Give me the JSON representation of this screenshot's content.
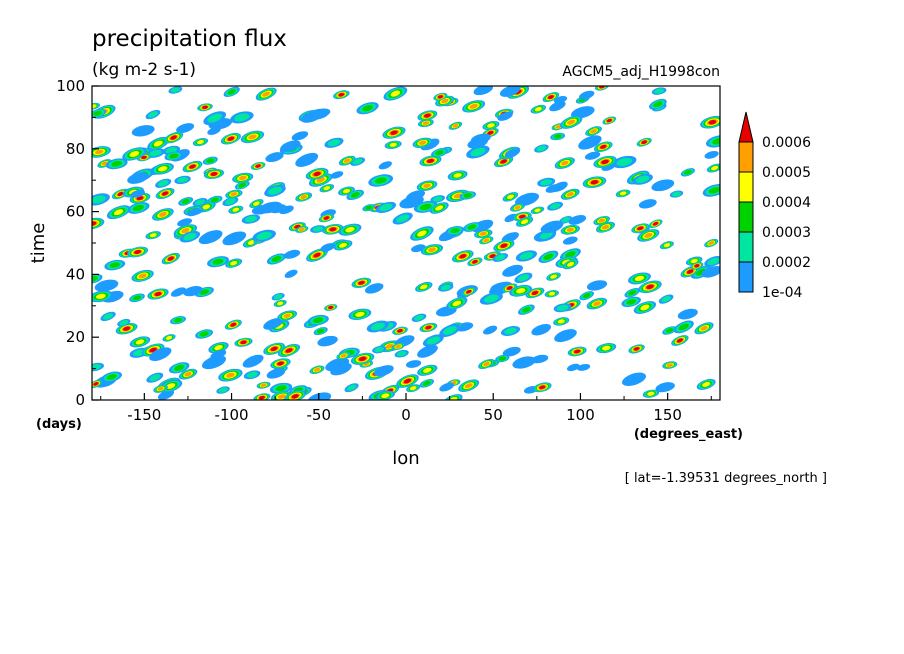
{
  "title": "precipitation flux",
  "units": "(kg m-2 s-1)",
  "dataset": "AGCM5_adj_H1998con",
  "footer": "[ lat=-1.39531 degrees_north ]",
  "colors": {
    "c1": "#1e9bff",
    "c2": "#00e6a0",
    "c3": "#00d200",
    "c4": "#ffff00",
    "c5": "#ffa000",
    "c6": "#e60000"
  },
  "chart_data": {
    "type": "heatmap",
    "title": "precipitation flux",
    "subtitle": "(kg m-2 s-1)",
    "xlabel": "lon",
    "xunit": "(degrees_east)",
    "ylabel": "time",
    "yunit": "(days)",
    "xlim": [
      -180,
      180
    ],
    "ylim": [
      0,
      100
    ],
    "xticks": [
      -150,
      -100,
      -50,
      0,
      50,
      100,
      150
    ],
    "xtick_labels": [
      "-150",
      "-100",
      "-50",
      "0",
      "50",
      "100",
      "150"
    ],
    "yticks": [
      0,
      20,
      40,
      60,
      80,
      100
    ],
    "ytick_labels": [
      "0",
      "20",
      "40",
      "60",
      "80",
      "100"
    ],
    "colorbar": {
      "levels": [
        0.0001,
        0.0002,
        0.0003,
        0.0004,
        0.0005,
        0.0006
      ],
      "labels": [
        "1e-04",
        "0.0002",
        "0.0003",
        "0.0004",
        "0.0005",
        "0.0006"
      ],
      "colors": [
        "#1e9bff",
        "#00e6a0",
        "#00d200",
        "#ffff00",
        "#ffa000",
        "#e60000"
      ],
      "extend": "max"
    },
    "annotation": "[ lat=-1.39531 degrees_north ]"
  }
}
